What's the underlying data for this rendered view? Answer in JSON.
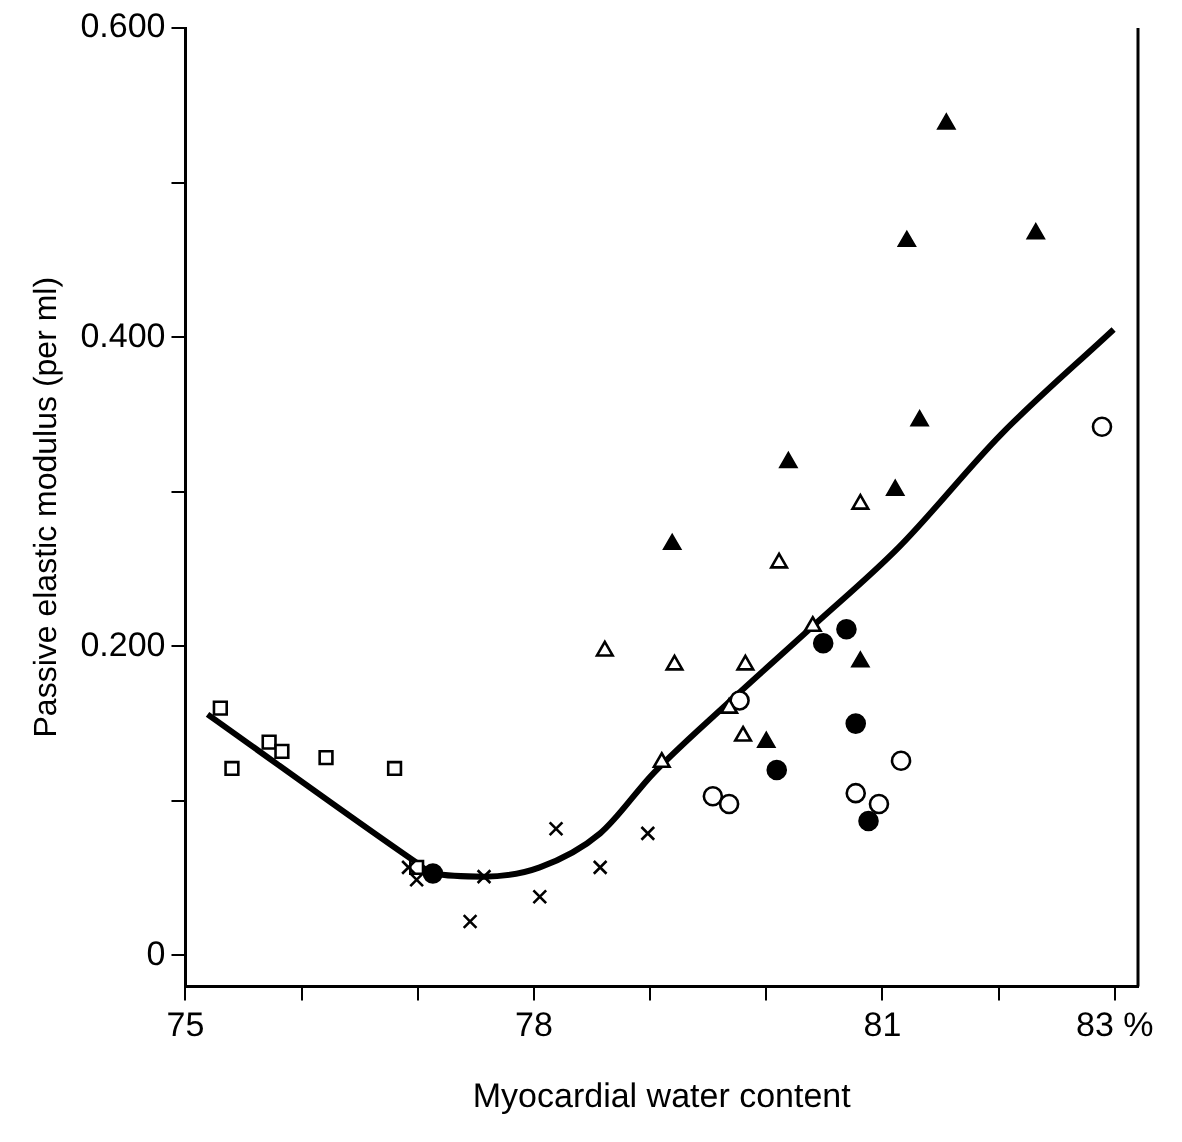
{
  "chart_data": {
    "type": "scatter",
    "xlabel": "Myocardial water content",
    "ylabel": "Passive elastic modulus (per ml)",
    "xlim": [
      75,
      83.2
    ],
    "ylim": [
      -0.02,
      0.6
    ],
    "xticks": [
      75,
      {
        "value": 76,
        "label": null
      },
      {
        "value": 77,
        "label": null
      },
      78,
      {
        "value": 79,
        "label": null
      },
      {
        "value": 80,
        "label": null
      },
      81,
      {
        "value": 82,
        "label": null
      },
      {
        "value": 83,
        "label": "83 %"
      }
    ],
    "yticks": [
      {
        "value": 0,
        "label": "0"
      },
      {
        "value": 0.1,
        "label": null
      },
      {
        "value": 0.2,
        "label": "0.200"
      },
      {
        "value": 0.3,
        "label": null
      },
      {
        "value": 0.4,
        "label": "0.400"
      },
      {
        "value": 0.5,
        "label": null
      },
      {
        "value": 0.6,
        "label": "0.600"
      }
    ],
    "grid": false,
    "legend": false,
    "series": [
      {
        "marker": "square",
        "color": "#ffffff",
        "x": [
          75.3,
          75.4,
          75.72,
          75.83,
          76.21,
          76.8,
          76.99
        ],
        "values": [
          0.16,
          0.121,
          0.138,
          0.132,
          0.128,
          0.121,
          0.057
        ]
      },
      {
        "marker": "cross",
        "color": "#000000",
        "x": [
          76.92,
          76.99,
          77.45,
          77.57,
          78.05,
          78.19,
          78.57,
          78.98
        ],
        "values": [
          0.057,
          0.049,
          0.022,
          0.051,
          0.038,
          0.082,
          0.057,
          0.079
        ]
      },
      {
        "marker": "triangle",
        "color": "#ffffff",
        "x": [
          78.61,
          79.1,
          79.21,
          79.82,
          79.68,
          79.8,
          80.11,
          80.4,
          80.81
        ],
        "values": [
          0.197,
          0.125,
          0.188,
          0.188,
          0.16,
          0.142,
          0.254,
          0.213,
          0.292
        ]
      },
      {
        "marker": "triangle",
        "color": "#000000",
        "x": [
          79.19,
          80.19,
          81.32,
          81.11,
          80.81,
          80.0,
          81.55,
          81.21,
          82.32
        ],
        "values": [
          0.266,
          0.319,
          0.346,
          0.301,
          0.19,
          0.138,
          0.538,
          0.462,
          0.467
        ]
      },
      {
        "marker": "circle",
        "color": "#000000",
        "x": [
          77.13,
          80.69,
          80.49,
          80.77,
          80.09,
          80.88
        ],
        "values": [
          0.053,
          0.211,
          0.202,
          0.15,
          0.12,
          0.087
        ]
      },
      {
        "marker": "circle",
        "color": "#ffffff",
        "x": [
          79.77,
          79.54,
          79.68,
          80.77,
          80.97,
          81.16,
          82.89
        ],
        "values": [
          0.165,
          0.103,
          0.098,
          0.105,
          0.098,
          0.126,
          0.342
        ]
      },
      {
        "type": "line",
        "marker": "none",
        "line_style": "solid",
        "color": "#000000",
        "x": [
          75.19,
          76.99,
          77.13,
          77.57,
          78.05,
          78.57,
          79.03,
          79.68,
          80.4,
          81.14,
          82.02,
          82.99
        ],
        "values": [
          0.156,
          0.06,
          0.053,
          0.051,
          0.057,
          0.079,
          0.118,
          0.164,
          0.213,
          0.264,
          0.337,
          0.405
        ]
      }
    ]
  }
}
